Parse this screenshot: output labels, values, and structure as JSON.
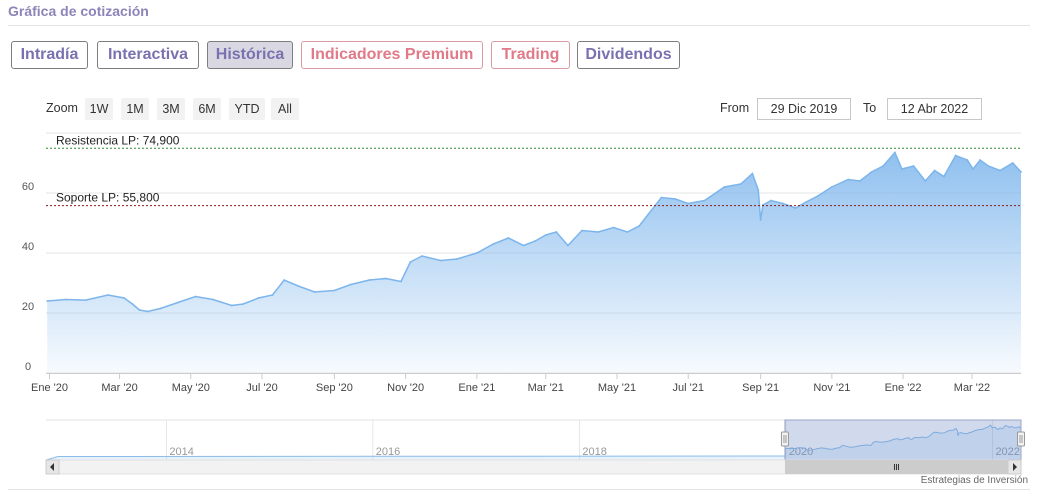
{
  "section_title": "Gráfica de cotización",
  "tabs": [
    {
      "label": "Intradía",
      "style": "normal"
    },
    {
      "label": "Interactiva",
      "style": "normal"
    },
    {
      "label": "Histórica",
      "style": "active"
    },
    {
      "label": "Indicadores Premium",
      "style": "premium"
    },
    {
      "label": "Trading",
      "style": "premium"
    },
    {
      "label": "Dividendos",
      "style": "normal"
    }
  ],
  "zoom": {
    "label": "Zoom",
    "buttons": [
      "1W",
      "1M",
      "3M",
      "6M",
      "YTD",
      "All"
    ]
  },
  "range": {
    "from_label": "From",
    "from_value": "29 Dic 2019",
    "to_label": "To",
    "to_value": "12 Abr 2022"
  },
  "credits": "Estrategias de Inversión",
  "colors": {
    "line": "#7cb5ec",
    "resistance": "#2e8b2e",
    "support": "#8b1a1a",
    "tab_text": "#7a72b0",
    "premium_text": "#e07a88"
  },
  "chart_data": {
    "type": "area",
    "x_tick_labels": [
      "Ene '20",
      "Mar '20",
      "May '20",
      "Jul '20",
      "Sep '20",
      "Nov '20",
      "Ene '21",
      "Mar '21",
      "May '21",
      "Jul '21",
      "Sep '21",
      "Nov '21",
      "Ene '22",
      "Mar '22"
    ],
    "x_ticks": [
      "2020-01-01",
      "2020-03-01",
      "2020-05-01",
      "2020-07-01",
      "2020-09-01",
      "2020-11-01",
      "2021-01-01",
      "2021-03-01",
      "2021-05-01",
      "2021-07-01",
      "2021-09-01",
      "2021-11-01",
      "2022-01-01",
      "2022-03-01"
    ],
    "y_ticks": [
      0,
      20,
      40,
      60
    ],
    "xlim": [
      "2019-12-29",
      "2022-04-12"
    ],
    "ylim": [
      0,
      80
    ],
    "grid": true,
    "legend": "none",
    "series": [
      {
        "x": [
          "2019-12-30",
          "2020-01-15",
          "2020-02-01",
          "2020-02-20",
          "2020-03-05",
          "2020-03-12",
          "2020-03-18",
          "2020-03-25",
          "2020-04-05",
          "2020-04-20",
          "2020-05-05",
          "2020-05-20",
          "2020-06-05",
          "2020-06-15",
          "2020-06-28",
          "2020-07-10",
          "2020-07-20",
          "2020-08-01",
          "2020-08-15",
          "2020-09-01",
          "2020-09-15",
          "2020-10-01",
          "2020-10-15",
          "2020-10-28",
          "2020-11-05",
          "2020-11-15",
          "2020-12-01",
          "2020-12-15",
          "2021-01-01",
          "2021-01-15",
          "2021-01-28",
          "2021-02-10",
          "2021-02-20",
          "2021-03-01",
          "2021-03-10",
          "2021-03-20",
          "2021-04-01",
          "2021-04-15",
          "2021-04-28",
          "2021-05-10",
          "2021-05-20",
          "2021-05-28",
          "2021-06-08",
          "2021-06-20",
          "2021-07-01",
          "2021-07-15",
          "2021-08-01",
          "2021-08-15",
          "2021-08-25",
          "2021-08-30",
          "2021-09-01",
          "2021-09-03",
          "2021-09-10",
          "2021-09-20",
          "2021-10-01",
          "2021-10-10",
          "2021-10-20",
          "2021-11-01",
          "2021-11-15",
          "2021-11-25",
          "2021-12-05",
          "2021-12-15",
          "2021-12-25",
          "2021-12-31",
          "2022-01-10",
          "2022-01-20",
          "2022-01-28",
          "2022-02-05",
          "2022-02-15",
          "2022-02-25",
          "2022-03-02",
          "2022-03-08",
          "2022-03-15",
          "2022-03-25",
          "2022-04-05",
          "2022-04-12"
        ],
        "values": [
          24.0,
          24.5,
          24.3,
          26.0,
          25.0,
          23.0,
          21.0,
          20.5,
          21.5,
          23.5,
          25.5,
          24.5,
          22.5,
          23.0,
          25.0,
          26.0,
          31.0,
          29.0,
          27.0,
          27.5,
          29.5,
          31.0,
          31.5,
          30.5,
          37.0,
          39.0,
          37.5,
          38.0,
          40.0,
          43.0,
          45.0,
          42.5,
          44.0,
          46.0,
          47.0,
          42.5,
          47.5,
          47.0,
          48.5,
          47.0,
          49.0,
          53.0,
          58.5,
          58.0,
          56.5,
          57.5,
          62.0,
          63.0,
          66.5,
          61.0,
          51.0,
          56.0,
          57.5,
          56.5,
          55.0,
          57.0,
          59.0,
          62.0,
          64.5,
          64.0,
          67.0,
          69.0,
          73.5,
          68.0,
          69.0,
          64.0,
          67.5,
          65.5,
          72.5,
          71.0,
          68.0,
          71.0,
          69.0,
          67.5,
          70.0,
          67.0
        ]
      }
    ],
    "plot_lines": [
      {
        "label": "Resistencia LP: 74,900",
        "value": 74.9,
        "color": "#2e8b2e"
      },
      {
        "label": "Soporte LP: 55,800",
        "value": 55.8,
        "color": "#8b1a1a"
      }
    ],
    "navigator": {
      "x_tick_labels": [
        "2014",
        "2016",
        "2018",
        "2020",
        "2022"
      ],
      "x_ticks": [
        "2014-01-01",
        "2016-01-01",
        "2018-01-01",
        "2020-01-01",
        "2022-01-01"
      ],
      "xlim": [
        "2012-11-01",
        "2022-04-12"
      ]
    }
  }
}
